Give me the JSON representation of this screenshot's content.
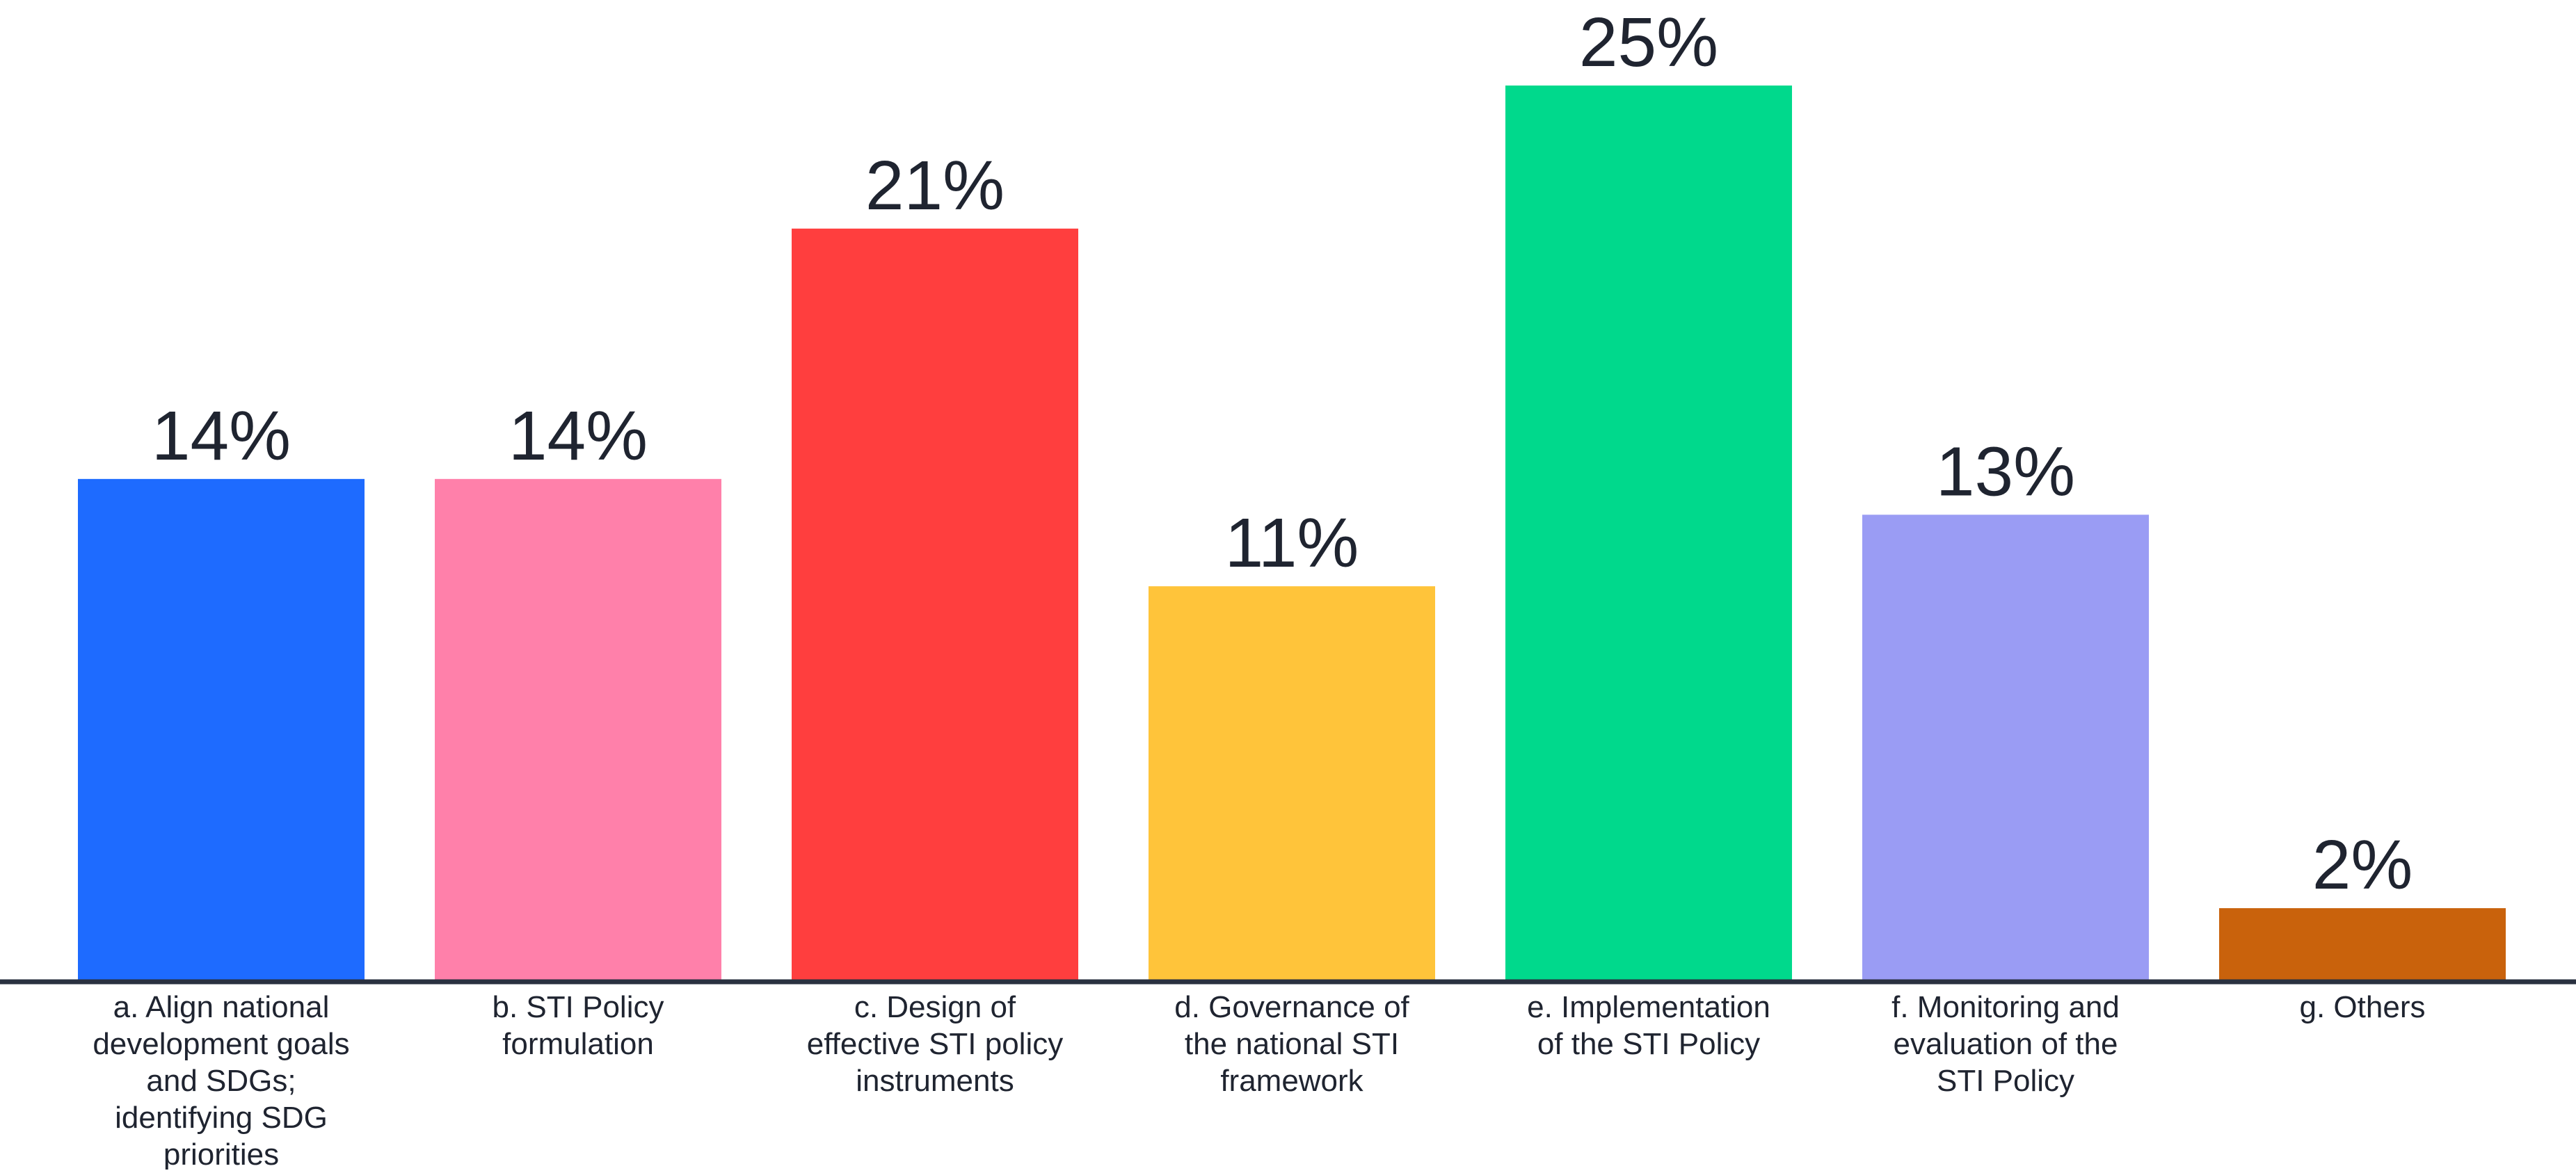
{
  "chart_data": {
    "type": "bar",
    "categories": [
      [
        "a. Align national",
        "development goals",
        "and SDGs;",
        "identifying SDG",
        "priorities"
      ],
      [
        "b. STI Policy",
        "formulation"
      ],
      [
        "c. Design of",
        "effective STI policy",
        "instruments"
      ],
      [
        "d. Governance of",
        "the national STI",
        "framework"
      ],
      [
        "e. Implementation",
        "of the STI Policy"
      ],
      [
        "f. Monitoring and",
        "evaluation of the",
        "STI Policy"
      ],
      [
        "g. Others"
      ]
    ],
    "values": [
      14,
      14,
      21,
      11,
      25,
      13,
      2
    ],
    "value_labels": [
      "14%",
      "14%",
      "21%",
      "11%",
      "25%",
      "13%",
      "2%"
    ],
    "colors": [
      "#1e6bff",
      "#ff80aa",
      "#ff3e3e",
      "#ffc43a",
      "#00d98c",
      "#9a9cf4",
      "#c9620c"
    ],
    "axis_color": "#2a3140",
    "ylim": [
      0,
      25
    ],
    "grid": false,
    "legend": "none"
  }
}
